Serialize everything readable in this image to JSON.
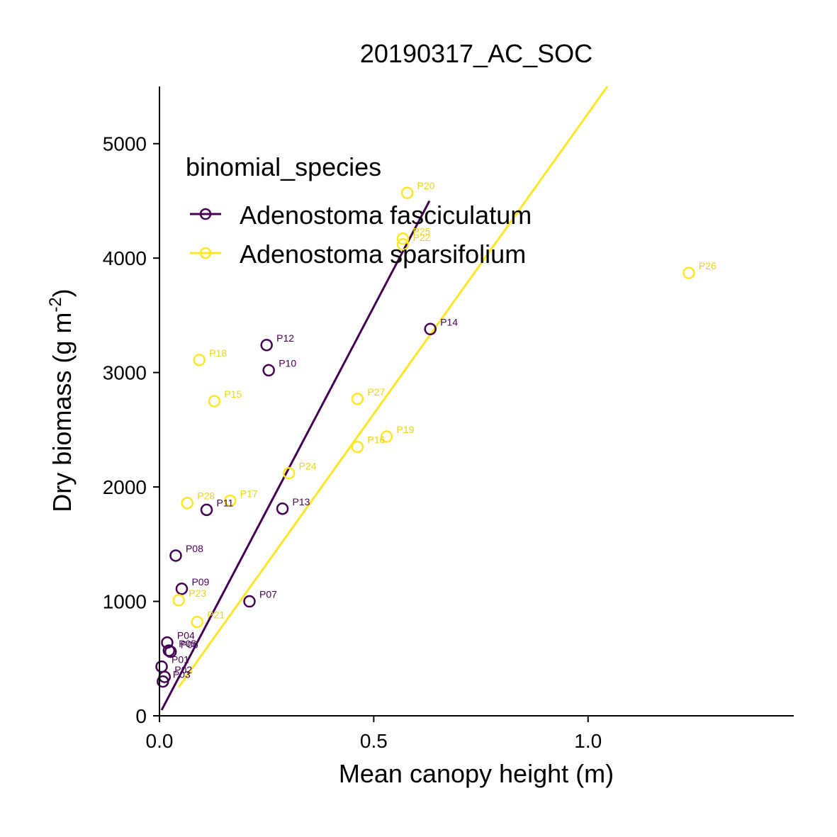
{
  "chart_data": {
    "type": "scatter",
    "title": "20190317_AC_SOC",
    "xlabel": "Mean canopy height (m)",
    "ylabel": "Dry biomass (g m",
    "ylabel_sup": "-2",
    "ylabel_close": ")",
    "xlim": [
      0,
      1.48
    ],
    "ylim": [
      0,
      5500
    ],
    "x_ticks": [
      {
        "value": 0.0,
        "label": "0.0"
      },
      {
        "value": 0.5,
        "label": "0.5"
      },
      {
        "value": 1.0,
        "label": "1.0"
      }
    ],
    "y_ticks": [
      {
        "value": 0,
        "label": "0"
      },
      {
        "value": 1000,
        "label": "1000"
      },
      {
        "value": 2000,
        "label": "2000"
      },
      {
        "value": 3000,
        "label": "3000"
      },
      {
        "value": 4000,
        "label": "4000"
      },
      {
        "value": 5000,
        "label": "5000"
      }
    ],
    "grid": false,
    "legend": {
      "title": "binomial_species",
      "placement": "top-left"
    },
    "series": [
      {
        "name": "Adenostoma fasciculatum",
        "color": "#440154",
        "label_color": "#440154",
        "fit_line": {
          "x": [
            0.005,
            0.63
          ],
          "y": [
            50,
            4500
          ]
        },
        "points": [
          {
            "label": "P01",
            "x": 0.005,
            "y": 430
          },
          {
            "label": "P02",
            "x": 0.012,
            "y": 340
          },
          {
            "label": "P03",
            "x": 0.008,
            "y": 300
          },
          {
            "label": "P04",
            "x": 0.018,
            "y": 640
          },
          {
            "label": "P05",
            "x": 0.022,
            "y": 570
          },
          {
            "label": "P06",
            "x": 0.026,
            "y": 560
          },
          {
            "label": "P07",
            "x": 0.21,
            "y": 1000
          },
          {
            "label": "P08",
            "x": 0.038,
            "y": 1400
          },
          {
            "label": "P09",
            "x": 0.052,
            "y": 1110
          },
          {
            "label": "P10",
            "x": 0.255,
            "y": 3020
          },
          {
            "label": "P11",
            "x": 0.11,
            "y": 1800
          },
          {
            "label": "P12",
            "x": 0.25,
            "y": 3240
          },
          {
            "label": "P13",
            "x": 0.287,
            "y": 1810
          },
          {
            "label": "P14",
            "x": 0.632,
            "y": 3380
          }
        ]
      },
      {
        "name": "Adenostoma sparsifolium",
        "color": "#FDE725",
        "label_color": "#E8D41A",
        "fit_line": {
          "x": [
            0.045,
            1.045
          ],
          "y": [
            250,
            5500
          ]
        },
        "points": [
          {
            "label": "P15",
            "x": 0.128,
            "y": 2750
          },
          {
            "label": "P16",
            "x": 0.462,
            "y": 2350
          },
          {
            "label": "P17",
            "x": 0.165,
            "y": 1880
          },
          {
            "label": "P18",
            "x": 0.093,
            "y": 3110
          },
          {
            "label": "P19",
            "x": 0.53,
            "y": 2440
          },
          {
            "label": "P20",
            "x": 0.578,
            "y": 4570
          },
          {
            "label": "P21",
            "x": 0.088,
            "y": 820
          },
          {
            "label": "P22",
            "x": 0.568,
            "y": 4120
          },
          {
            "label": "P23",
            "x": 0.045,
            "y": 1010
          },
          {
            "label": "P24",
            "x": 0.302,
            "y": 2120
          },
          {
            "label": "P25",
            "x": 0.568,
            "y": 4170
          },
          {
            "label": "P26",
            "x": 1.235,
            "y": 3870
          },
          {
            "label": "P27",
            "x": 0.462,
            "y": 2770
          },
          {
            "label": "P28",
            "x": 0.065,
            "y": 1860
          }
        ]
      }
    ]
  }
}
